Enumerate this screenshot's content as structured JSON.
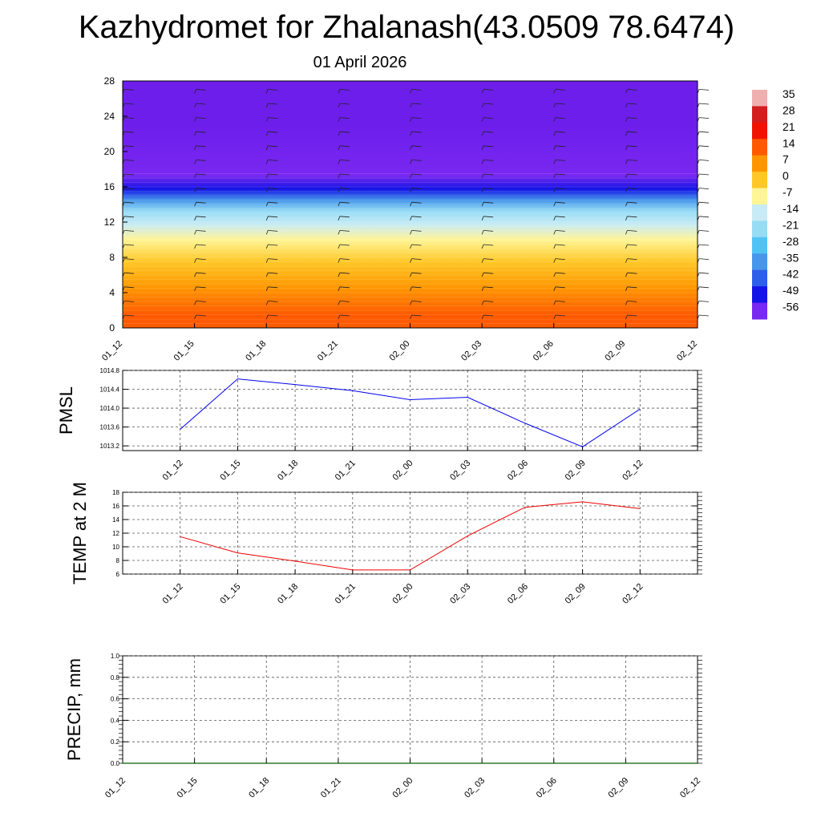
{
  "header": {
    "title": "Kazhydromet for Zhalanash(43.0509 78.6474)",
    "date": "01 April 2026"
  },
  "colors": {
    "pmsl_line": "#0000ee",
    "temp_line": "#ee0000",
    "precip_line": "#006400"
  },
  "chart_data": [
    {
      "type": "heatmap",
      "name": "vertical-temperature-cross-section",
      "title": "",
      "x_categories": [
        "01_12",
        "01_15",
        "01_18",
        "01_21",
        "02_00",
        "02_03",
        "02_06",
        "02_09",
        "02_12"
      ],
      "y_ticks": [
        0,
        4,
        8,
        12,
        16,
        20,
        24,
        28
      ],
      "ylim": [
        0,
        28
      ],
      "temperature_bands": [
        {
          "from": 0,
          "to": 3,
          "value": 14
        },
        {
          "from": 3,
          "to": 6,
          "value": 7
        },
        {
          "from": 6,
          "to": 9,
          "value": 0
        },
        {
          "from": 9,
          "to": 11,
          "value": -7
        },
        {
          "from": 11,
          "to": 12.5,
          "value": -14
        },
        {
          "from": 12.5,
          "to": 14,
          "value": -21
        },
        {
          "from": 14,
          "to": 15,
          "value": -35
        },
        {
          "from": 15,
          "to": 16.5,
          "value": -49
        },
        {
          "from": 16.5,
          "to": 18,
          "value": -56
        },
        {
          "from": 18,
          "to": 28,
          "value": -60
        }
      ],
      "colorbar": {
        "labels": [
          "35",
          "28",
          "21",
          "14",
          "7",
          "0",
          "-7",
          "-14",
          "-21",
          "-28",
          "-35",
          "-42",
          "-49",
          "-56"
        ]
      }
    },
    {
      "type": "line",
      "name": "pmsl",
      "ylabel": "PMSL",
      "categories": [
        "01_12",
        "01_15",
        "01_18",
        "01_21",
        "02_00",
        "02_03",
        "02_06",
        "02_09",
        "02_12"
      ],
      "values": [
        1013.55,
        1014.62,
        1014.5,
        1014.37,
        1014.18,
        1014.23,
        1013.68,
        1013.18,
        1013.98
      ],
      "ylim": [
        1013.1,
        1014.8
      ],
      "y_ticks": [
        "1013.2",
        "1013.6",
        "1014.0",
        "1014.4",
        "1014.8"
      ]
    },
    {
      "type": "line",
      "name": "temp-2m",
      "ylabel": "TEMP at 2 M",
      "categories": [
        "01_12",
        "01_15",
        "01_18",
        "01_21",
        "02_00",
        "02_03",
        "02_06",
        "02_09",
        "02_12"
      ],
      "values": [
        11.5,
        9.1,
        7.9,
        6.6,
        6.6,
        11.6,
        15.8,
        16.6,
        15.6
      ],
      "ylim": [
        6,
        18
      ],
      "y_ticks": [
        "6",
        "8",
        "10",
        "12",
        "14",
        "16",
        "18"
      ]
    },
    {
      "type": "line",
      "name": "precip",
      "ylabel": "PRECIP, mm",
      "categories": [
        "01_12",
        "01_15",
        "01_18",
        "01_21",
        "02_00",
        "02_03",
        "02_06",
        "02_09",
        "02_12"
      ],
      "values": [
        0,
        0,
        0,
        0,
        0,
        0,
        0,
        0,
        0
      ],
      "ylim": [
        0,
        1
      ],
      "y_ticks": [
        "0.0",
        "0.2",
        "0.4",
        "0.6",
        "0.8",
        "1.0"
      ]
    }
  ]
}
